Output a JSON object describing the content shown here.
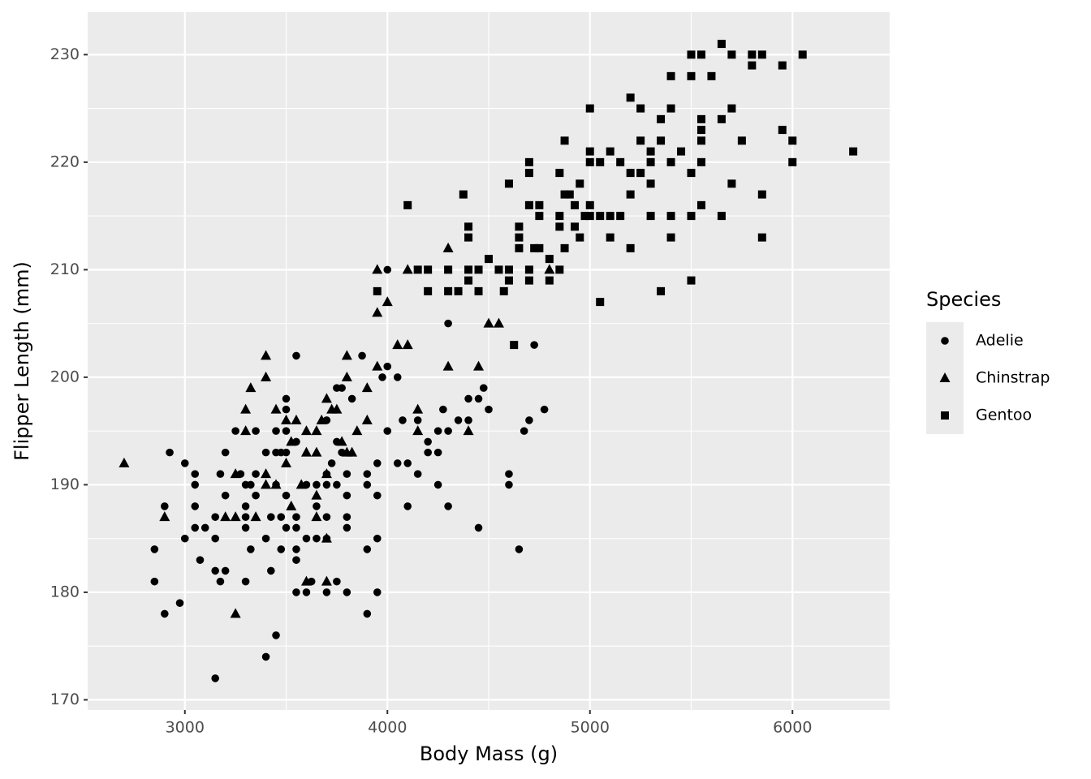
{
  "chart_data": {
    "type": "scatter",
    "x_label": "Body Mass (g)",
    "y_label": "Flipper Length (mm)",
    "legend_title": "Species",
    "legend_position": "right",
    "xlim": [
      2520,
      6480
    ],
    "ylim": [
      169.05,
      233.95
    ],
    "xticks": [
      3000,
      4000,
      5000,
      6000
    ],
    "yticks": [
      170,
      180,
      190,
      200,
      210,
      220,
      230
    ],
    "x_minor_breaks": [
      3500,
      4500,
      5500
    ],
    "y_minor_breaks": [
      175,
      185,
      195,
      205,
      215,
      225
    ],
    "grid": true,
    "series": [
      {
        "name": "Adelie",
        "shape": "circle",
        "color": "#000000",
        "x": [
          2850,
          2850,
          2900,
          2900,
          2925,
          2975,
          3000,
          3000,
          3050,
          3050,
          3050,
          3050,
          3075,
          3100,
          3150,
          3150,
          3150,
          3150,
          3175,
          3175,
          3200,
          3200,
          3200,
          3250,
          3275,
          3300,
          3300,
          3300,
          3300,
          3300,
          3325,
          3325,
          3350,
          3350,
          3350,
          3400,
          3400,
          3400,
          3425,
          3425,
          3450,
          3450,
          3450,
          3450,
          3475,
          3475,
          3475,
          3500,
          3500,
          3500,
          3500,
          3500,
          3500,
          3550,
          3550,
          3550,
          3550,
          3550,
          3550,
          3550,
          3600,
          3600,
          3600,
          3625,
          3650,
          3650,
          3650,
          3700,
          3700,
          3700,
          3700,
          3700,
          3700,
          3725,
          3750,
          3750,
          3750,
          3750,
          3775,
          3775,
          3800,
          3800,
          3800,
          3800,
          3800,
          3825,
          3875,
          3900,
          3900,
          3900,
          3900,
          3950,
          3950,
          3950,
          3950,
          3975,
          4000,
          4000,
          4000,
          4050,
          4050,
          4075,
          4100,
          4100,
          4150,
          4150,
          4200,
          4200,
          4250,
          4250,
          4250,
          4275,
          4300,
          4300,
          4300,
          4350,
          4400,
          4400,
          4450,
          4450,
          4475,
          4500,
          4600,
          4600,
          4650,
          4675,
          4700,
          4725,
          4775
        ],
        "values": [
          184,
          181,
          178,
          188,
          193,
          179,
          192,
          185,
          191,
          190,
          188,
          186,
          183,
          186,
          187,
          185,
          182,
          172,
          191,
          181,
          193,
          189,
          182,
          195,
          191,
          190,
          188,
          187,
          186,
          181,
          184,
          190,
          195,
          189,
          191,
          193,
          185,
          174,
          187,
          182,
          195,
          193,
          190,
          176,
          193,
          187,
          184,
          198,
          197,
          195,
          193,
          189,
          186,
          202,
          194,
          187,
          186,
          184,
          183,
          180,
          190,
          185,
          180,
          181,
          190,
          188,
          185,
          196,
          191,
          190,
          187,
          180,
          185,
          192,
          199,
          194,
          190,
          181,
          199,
          193,
          189,
          191,
          187,
          186,
          180,
          198,
          202,
          191,
          190,
          184,
          178,
          192,
          189,
          185,
          180,
          200,
          210,
          201,
          195,
          200,
          192,
          196,
          192,
          188,
          191,
          196,
          194,
          193,
          195,
          193,
          190,
          197,
          205,
          195,
          188,
          196,
          198,
          196,
          198,
          186,
          199,
          197,
          191,
          190,
          184,
          195,
          196,
          203,
          197
        ]
      },
      {
        "name": "Chinstrap",
        "shape": "triangle",
        "color": "#000000",
        "x": [
          2700,
          2900,
          3250,
          3250,
          3250,
          3200,
          3300,
          3300,
          3325,
          3350,
          3400,
          3400,
          3400,
          3400,
          3450,
          3450,
          3500,
          3500,
          3525,
          3525,
          3550,
          3575,
          3600,
          3600,
          3600,
          3650,
          3650,
          3650,
          3650,
          3675,
          3700,
          3700,
          3700,
          3700,
          3725,
          3750,
          3775,
          3800,
          3800,
          3800,
          3825,
          3850,
          3900,
          3900,
          3950,
          3950,
          3950,
          4000,
          4050,
          4100,
          4100,
          4150,
          4150,
          4300,
          4300,
          4400,
          4450,
          4500,
          4550,
          4800
        ],
        "values": [
          192,
          187,
          178,
          191,
          187,
          187,
          197,
          195,
          199,
          187,
          202,
          200,
          191,
          190,
          197,
          190,
          196,
          192,
          194,
          188,
          196,
          190,
          195,
          193,
          181,
          195,
          193,
          189,
          187,
          196,
          198,
          191,
          185,
          181,
          197,
          197,
          194,
          202,
          200,
          193,
          193,
          195,
          199,
          196,
          210,
          206,
          201,
          207,
          203,
          210,
          203,
          197,
          195,
          212,
          201,
          195,
          201,
          205,
          205,
          210
        ]
      },
      {
        "name": "Gentoo",
        "shape": "square",
        "color": "#000000",
        "x": [
          3950,
          4100,
          4150,
          4200,
          4200,
          4300,
          4300,
          4350,
          4375,
          4400,
          4400,
          4400,
          4400,
          4450,
          4450,
          4500,
          4550,
          4575,
          4600,
          4600,
          4600,
          4625,
          4650,
          4650,
          4650,
          4700,
          4700,
          4700,
          4700,
          4700,
          4725,
          4750,
          4750,
          4750,
          4800,
          4800,
          4850,
          4850,
          4850,
          4850,
          4875,
          4875,
          4875,
          4900,
          4925,
          4925,
          4950,
          4950,
          4975,
          5000,
          5000,
          5000,
          5000,
          5000,
          5050,
          5050,
          5050,
          5100,
          5100,
          5100,
          5150,
          5150,
          5200,
          5200,
          5200,
          5200,
          5250,
          5250,
          5250,
          5300,
          5300,
          5300,
          5300,
          5350,
          5350,
          5350,
          5400,
          5400,
          5400,
          5400,
          5400,
          5450,
          5500,
          5500,
          5500,
          5500,
          5500,
          5550,
          5550,
          5550,
          5550,
          5550,
          5550,
          5600,
          5650,
          5650,
          5650,
          5700,
          5700,
          5700,
          5750,
          5800,
          5800,
          5850,
          5850,
          5850,
          5950,
          5950,
          6000,
          6000,
          6050,
          6300
        ],
        "values": [
          208,
          216,
          210,
          210,
          208,
          210,
          208,
          208,
          217,
          214,
          213,
          210,
          209,
          210,
          208,
          211,
          210,
          208,
          218,
          210,
          209,
          203,
          214,
          213,
          212,
          220,
          219,
          216,
          210,
          209,
          212,
          216,
          215,
          212,
          211,
          209,
          219,
          215,
          214,
          210,
          222,
          217,
          212,
          217,
          216,
          214,
          218,
          213,
          215,
          225,
          221,
          220,
          216,
          215,
          220,
          215,
          207,
          221,
          215,
          213,
          220,
          215,
          226,
          219,
          217,
          212,
          225,
          222,
          219,
          221,
          220,
          218,
          215,
          224,
          222,
          208,
          228,
          225,
          220,
          215,
          213,
          221,
          230,
          228,
          219,
          215,
          209,
          230,
          224,
          223,
          222,
          220,
          216,
          228,
          231,
          224,
          215,
          230,
          225,
          218,
          222,
          230,
          229,
          230,
          217,
          213,
          229,
          223,
          222,
          220,
          230,
          221
        ]
      }
    ]
  }
}
